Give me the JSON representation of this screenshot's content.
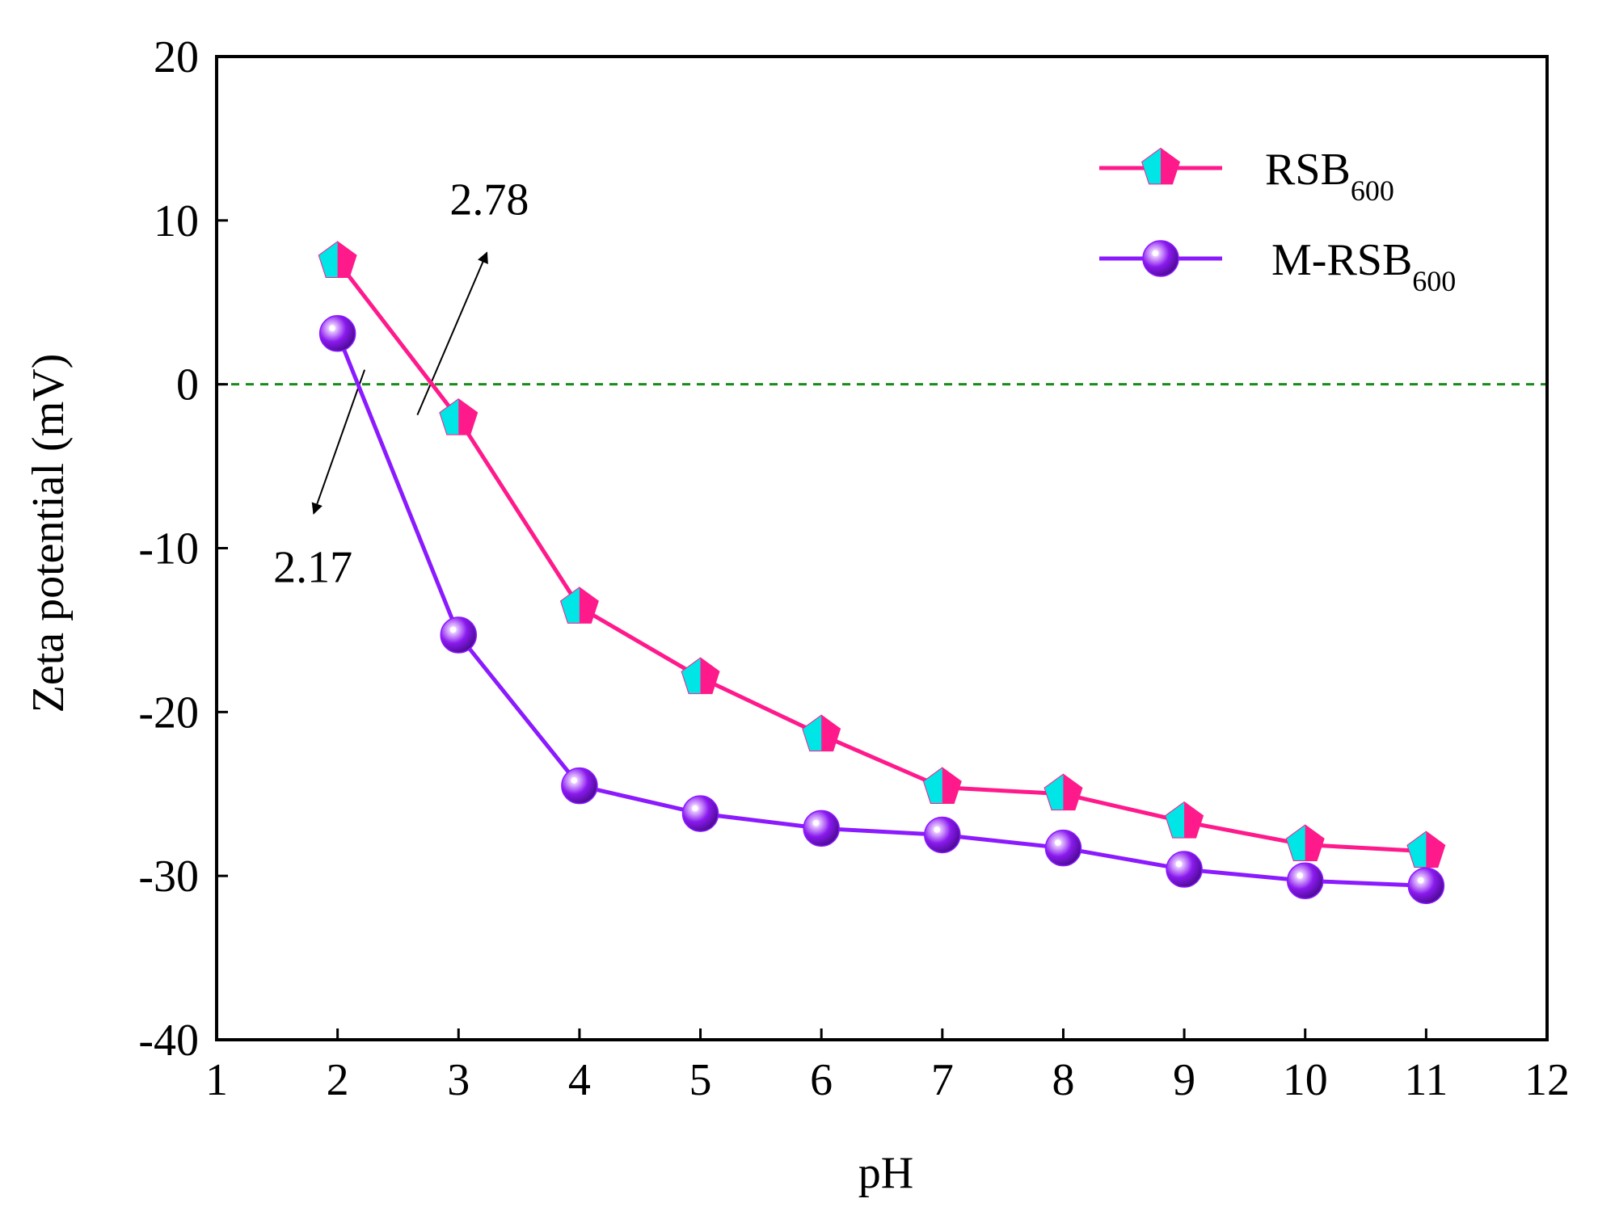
{
  "chart_data": {
    "type": "line",
    "title": "",
    "xlabel": "pH",
    "ylabel": "Zeta potential (mV)",
    "xlim": [
      1,
      12
    ],
    "ylim": [
      -40,
      20
    ],
    "xticks": [
      "1",
      "2",
      "3",
      "4",
      "5",
      "6",
      "7",
      "8",
      "9",
      "10",
      "11",
      "12"
    ],
    "yticks": [
      "20",
      "10",
      "0",
      "-10",
      "-20",
      "-30",
      "-40"
    ],
    "x": [
      2,
      3,
      4,
      5,
      6,
      7,
      8,
      9,
      10,
      11
    ],
    "reference_line": {
      "y": 0,
      "style": "dashed",
      "color": "#1a8a1a"
    },
    "series": [
      {
        "name": "RSB",
        "subscript": "600",
        "marker": "pentagon",
        "line_color": "#ff1a8c",
        "fill_color": "#00e5e5",
        "values": [
          7.5,
          -2.1,
          -13.6,
          -17.9,
          -21.4,
          -24.6,
          -25.0,
          -26.7,
          -28.1,
          -28.5
        ]
      },
      {
        "name": "M-RSB",
        "subscript": "600",
        "marker": "sphere",
        "line_color": "#8b1aff",
        "fill_color": "#8a1aee",
        "values": [
          3.1,
          -15.3,
          -24.5,
          -26.2,
          -27.1,
          -27.5,
          -28.3,
          -29.6,
          -30.3,
          -30.6
        ]
      }
    ],
    "annotations": [
      {
        "text": "2.78",
        "x": 2.78,
        "y": 0
      },
      {
        "text": "2.17",
        "x": 2.17,
        "y": 0
      }
    ],
    "legend": "top-right",
    "grid": false
  }
}
